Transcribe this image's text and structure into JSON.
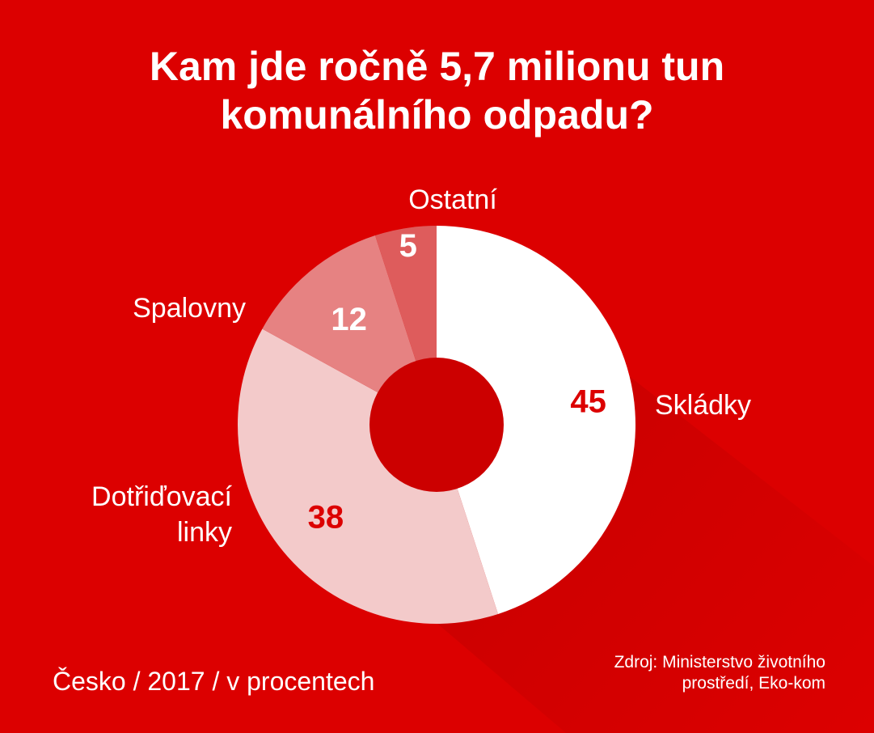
{
  "chart_data": {
    "type": "pie",
    "donut": true,
    "title": [
      "Kam jde ročně 5,7 milionu tun",
      "komunálního odpadu?"
    ],
    "slices": [
      {
        "label": "Skládky",
        "value": 45,
        "color": "#ffffff",
        "value_color": "#dc0000"
      },
      {
        "label": "Dotřiďovací linky",
        "label_lines": [
          "Dotřiďovací",
          "linky"
        ],
        "value": 38,
        "color": "#f3caca",
        "value_color": "#dc0000"
      },
      {
        "label": "Spalovny",
        "value": 12,
        "color": "#e68282",
        "value_color": "#ffffff"
      },
      {
        "label": "Ostatní",
        "value": 5,
        "color": "#de5c5c",
        "value_color": "#ffffff"
      }
    ],
    "unit": "v procentech"
  },
  "footer": {
    "left": "Česko / 2017 / v procentech",
    "source_lines": [
      "Zdroj: Ministerstvo životního",
      "prostředí, Eko-kom"
    ]
  },
  "colors": {
    "background": "#dc0000",
    "hole": "#cc0000"
  }
}
